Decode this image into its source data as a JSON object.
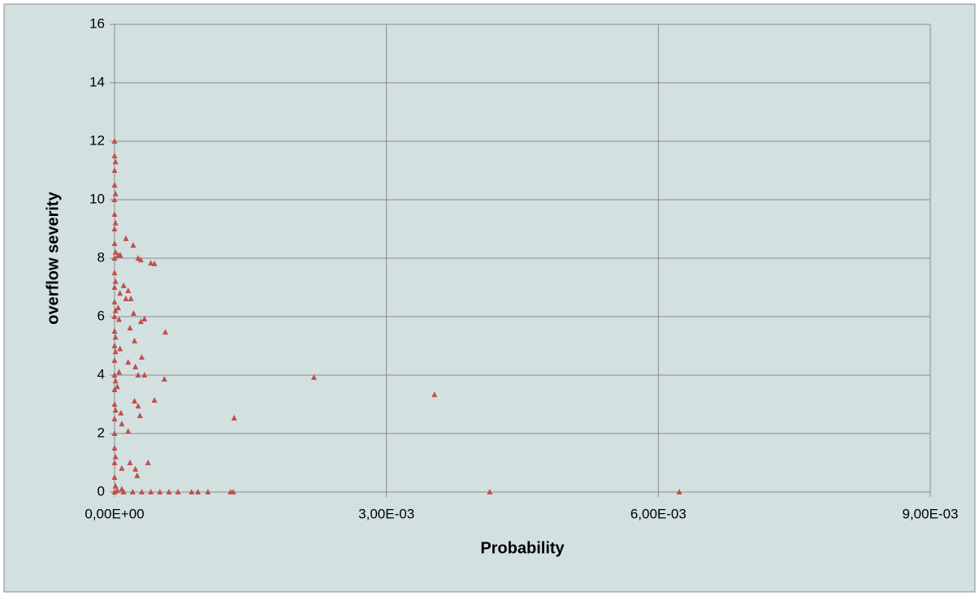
{
  "chart_data": {
    "type": "scatter",
    "x_label": "Probability",
    "y_label": "overflow severity",
    "color": "#c0504d",
    "grid": true,
    "xlim": [
      0,
      0.009
    ],
    "ylim": [
      0,
      16
    ],
    "xticks": [
      {
        "value": 0,
        "label": "0,00E+00"
      },
      {
        "value": 0.003,
        "label": "3,00E-03"
      },
      {
        "value": 0.006,
        "label": "6,00E-03"
      },
      {
        "value": 0.009,
        "label": "9,00E-03"
      }
    ],
    "yticks": [
      0,
      2,
      4,
      6,
      8,
      10,
      12,
      14,
      16
    ],
    "x": [
      0,
      0,
      0,
      0,
      0,
      0,
      0,
      0,
      0,
      0,
      0,
      0,
      0,
      0,
      0,
      0,
      0,
      0,
      0,
      0,
      0,
      0,
      0,
      0,
      0,
      1e-05,
      1e-05,
      1e-05,
      1e-05,
      1e-05,
      1e-05,
      1e-05,
      1e-05,
      1e-05,
      1e-05,
      1e-05,
      1e-05,
      4e-05,
      5e-05,
      6e-05,
      3e-05,
      7e-05,
      5e-05,
      4e-05,
      6e-05,
      8e-05,
      3e-05,
      0.000125,
      0.000206,
      0.00026,
      0.00029,
      0.0004,
      0.00044,
      6.3e-05,
      0.0001,
      0.00015,
      0.00018,
      0.000125,
      0.00021,
      0.00029,
      0.00033,
      0.00056,
      0.00017,
      0.00022,
      0.0003,
      0.00015,
      0.00023,
      0.00026,
      0.00033,
      0.00055,
      0.0022,
      0.00353,
      0.00044,
      0.00022,
      0.00026,
      0.00028,
      8e-05,
      0.00132,
      0.00015,
      0.00037,
      0.00017,
      0.00023,
      0.00025,
      8e-05,
      0.00414,
      0.00623,
      0.0001,
      0.0002,
      0.0003,
      0.0004,
      0.0005,
      0.0006,
      0.0007,
      0.00085,
      0.00092,
      0.00103,
      0.00128,
      0.00131
    ],
    "values": [
      0,
      0.5,
      1,
      1.5,
      2,
      2.5,
      3,
      3.5,
      4,
      4.5,
      5,
      5.5,
      6,
      6.5,
      7,
      7.5,
      8,
      8.5,
      9,
      9.5,
      10,
      10.5,
      11,
      11.5,
      12,
      0.2,
      1.2,
      2.8,
      3.8,
      4.8,
      5.3,
      6.2,
      7.2,
      8.2,
      9.2,
      10.2,
      11.3,
      6.3,
      5.9,
      4.9,
      3.6,
      2.7,
      4.1,
      8.1,
      6.8,
      0.1,
      0.05,
      8.67,
      8.44,
      8.0,
      7.94,
      7.83,
      7.81,
      8.1,
      7.06,
      6.89,
      6.61,
      6.61,
      6.11,
      5.83,
      5.92,
      5.47,
      5.61,
      5.17,
      4.61,
      4.44,
      4.28,
      4.0,
      4.0,
      3.86,
      3.92,
      3.33,
      3.14,
      3.11,
      2.94,
      2.61,
      2.33,
      2.53,
      2.08,
      1.0,
      1.0,
      0.78,
      0.56,
      0.81,
      0,
      0,
      0,
      0,
      0,
      0,
      0,
      0,
      0,
      0,
      0,
      0,
      0,
      0
    ]
  }
}
